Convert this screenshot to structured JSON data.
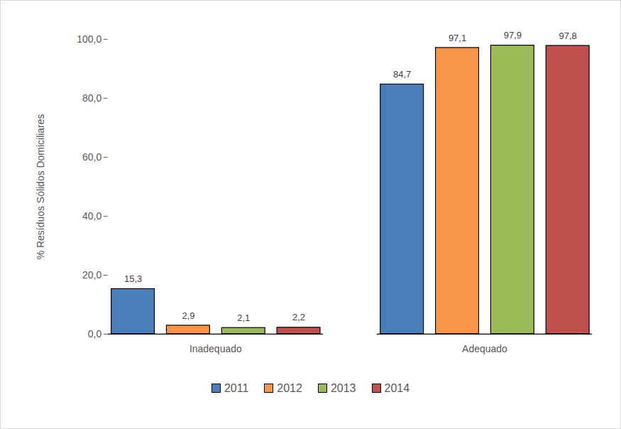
{
  "chart_data": {
    "type": "bar",
    "y_label": "% Resíduos Sólidos Domiciliares",
    "categories": [
      "Inadequado",
      "Adequado"
    ],
    "series": [
      {
        "name": "2011",
        "color": "#4a7ebb",
        "values": [
          15.3,
          84.7
        ],
        "value_labels": [
          "15,3",
          "84,7"
        ]
      },
      {
        "name": "2012",
        "color": "#f79646",
        "values": [
          2.9,
          97.1
        ],
        "value_labels": [
          "2,9",
          "97,1"
        ]
      },
      {
        "name": "2013",
        "color": "#9bbb59",
        "values": [
          2.1,
          97.9
        ],
        "value_labels": [
          "2,1",
          "97,9"
        ]
      },
      {
        "name": "2014",
        "color": "#c0504d",
        "values": [
          2.2,
          97.8
        ],
        "value_labels": [
          "2,2",
          "97,8"
        ]
      }
    ],
    "ylim": [
      0,
      100
    ],
    "yticks": [
      {
        "value": 0,
        "label": "0,0"
      },
      {
        "value": 20,
        "label": "20,0"
      },
      {
        "value": 40,
        "label": "40,0"
      },
      {
        "value": 60,
        "label": "60,0"
      },
      {
        "value": 80,
        "label": "80,0"
      },
      {
        "value": 100,
        "label": "100,0"
      }
    ],
    "grid": false,
    "data_labels": true,
    "legend": "bottom"
  }
}
